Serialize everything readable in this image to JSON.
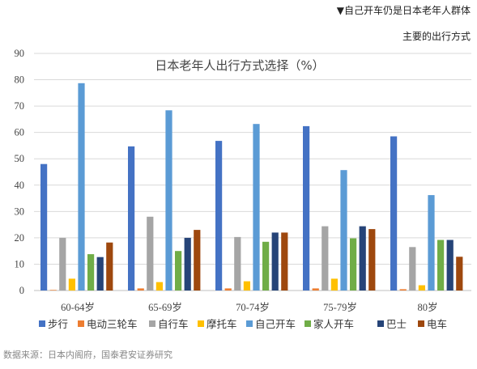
{
  "header": {
    "line1": "▼自己开车仍是日本老年人群体",
    "line2": "主要的出行方式"
  },
  "source_note": "数据来源：日本内阁府，国泰君安证券研究",
  "chart_data": {
    "type": "bar",
    "title": "日本老年人出行方式选择（%）",
    "xlabel": "",
    "ylabel": "",
    "ylim": [
      0,
      90
    ],
    "yticks": [
      0,
      10,
      20,
      30,
      40,
      50,
      60,
      70,
      80,
      90
    ],
    "grid": true,
    "legend_position": "bottom",
    "categories": [
      "60-64岁",
      "65-69岁",
      "70-74岁",
      "75-79岁",
      "80岁"
    ],
    "series": [
      {
        "name": "步行",
        "color": "#4472C4",
        "values": [
          48,
          54.7,
          56.8,
          62.4,
          58.5
        ]
      },
      {
        "name": "电动三轮车",
        "color": "#ED7D31",
        "values": [
          0.2,
          0.8,
          0.8,
          0.8,
          0.5
        ]
      },
      {
        "name": "自行车",
        "color": "#A5A5A5",
        "values": [
          20,
          28,
          20.3,
          24.4,
          16.5
        ]
      },
      {
        "name": "摩托车",
        "color": "#FFC000",
        "values": [
          4.5,
          3.2,
          3.5,
          4.5,
          2
        ]
      },
      {
        "name": "自己开车",
        "color": "#5B9BD5",
        "values": [
          78.7,
          68.4,
          63.2,
          45.7,
          36.2
        ]
      },
      {
        "name": "家人开车",
        "color": "#70AD47",
        "values": [
          13.8,
          15,
          18.5,
          19.8,
          19.2
        ]
      },
      {
        "name": "巴士",
        "color": "#264478",
        "values": [
          12.7,
          20,
          22,
          24.4,
          19.2
        ]
      },
      {
        "name": "电车",
        "color": "#9E480E",
        "values": [
          18.2,
          23,
          22,
          23.3,
          12.8
        ]
      }
    ]
  }
}
